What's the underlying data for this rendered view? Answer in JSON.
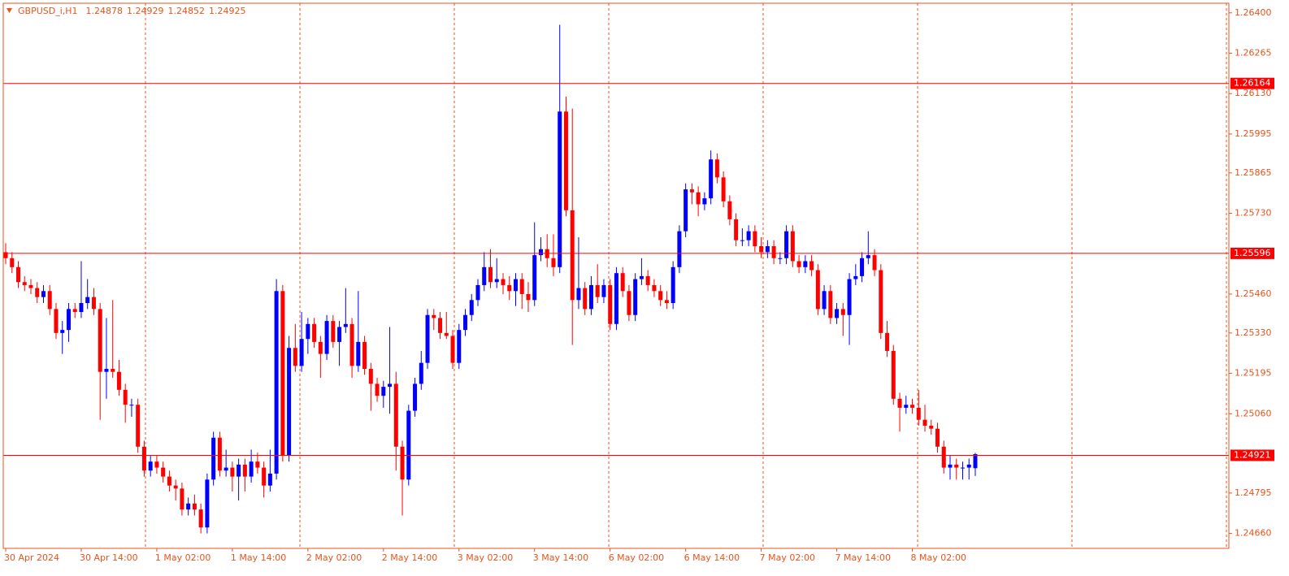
{
  "chart_data": {
    "type": "candlestick",
    "title": "GBPUSD_i,H1",
    "ylim": [
      1.2461,
      1.26432
    ],
    "yticks": [
      {
        "value": 1.264,
        "label": "1.26400"
      },
      {
        "value": 1.26265,
        "label": "1.26265"
      },
      {
        "value": 1.2613,
        "label": "1.26130"
      },
      {
        "value": 1.25995,
        "label": "1.25995"
      },
      {
        "value": 1.25865,
        "label": "1.25865"
      },
      {
        "value": 1.2573,
        "label": "1.25730"
      },
      {
        "value": 1.2546,
        "label": "1.25460"
      },
      {
        "value": 1.2533,
        "label": "1.25330"
      },
      {
        "value": 1.25195,
        "label": "1.25195"
      },
      {
        "value": 1.2506,
        "label": "1.25060"
      },
      {
        "value": 1.24795,
        "label": "1.24795"
      },
      {
        "value": 1.2466,
        "label": "1.24660"
      }
    ],
    "hlines": [
      1.26164,
      1.25596,
      1.24921
    ],
    "x_labels": [
      "30 Apr 2024",
      "30 Apr 14:00",
      "1 May 02:00",
      "1 May 14:00",
      "2 May 02:00",
      "2 May 14:00",
      "3 May 02:00",
      "3 May 14:00",
      "6 May 02:00",
      "6 May 14:00",
      "7 May 02:00",
      "7 May 14:00",
      "8 May 02:00"
    ],
    "up_color": "#0000ff",
    "down_color": "#ff0000",
    "axis_color": "#e8541c",
    "grid": true,
    "candles": [
      [
        1.256,
        1.2563,
        1.2556,
        1.2558
      ],
      [
        1.2558,
        1.256,
        1.2553,
        1.2555
      ],
      [
        1.2555,
        1.2557,
        1.2548,
        1.255
      ],
      [
        1.255,
        1.2552,
        1.2547,
        1.2549
      ],
      [
        1.2549,
        1.2551,
        1.2546,
        1.2548
      ],
      [
        1.2548,
        1.255,
        1.2543,
        1.2545
      ],
      [
        1.2545,
        1.2549,
        1.2543,
        1.2547
      ],
      [
        1.2547,
        1.2549,
        1.2539,
        1.2541
      ],
      [
        1.2541,
        1.2543,
        1.2531,
        1.2533
      ],
      [
        1.2533,
        1.2537,
        1.2526,
        1.2534
      ],
      [
        1.2534,
        1.2543,
        1.253,
        1.2541
      ],
      [
        1.2541,
        1.2543,
        1.2538,
        1.254
      ],
      [
        1.254,
        1.2557,
        1.2538,
        1.2543
      ],
      [
        1.2543,
        1.2551,
        1.2541,
        1.2545
      ],
      [
        1.2545,
        1.2548,
        1.2539,
        1.2541
      ],
      [
        1.2541,
        1.2543,
        1.2504,
        1.252
      ],
      [
        1.252,
        1.2538,
        1.2511,
        1.2521
      ],
      [
        1.2521,
        1.2544,
        1.2518,
        1.252
      ],
      [
        1.252,
        1.2524,
        1.2512,
        1.2514
      ],
      [
        1.2514,
        1.2516,
        1.2503,
        1.2509
      ],
      [
        1.2509,
        1.2511,
        1.2505,
        1.2509
      ],
      [
        1.2509,
        1.2511,
        1.2493,
        1.2495
      ],
      [
        1.2495,
        1.2497,
        1.2485,
        1.2487
      ],
      [
        1.2487,
        1.2492,
        1.2485,
        1.249
      ],
      [
        1.249,
        1.2492,
        1.2486,
        1.2488
      ],
      [
        1.2488,
        1.249,
        1.2483,
        1.2485
      ],
      [
        1.2485,
        1.2487,
        1.248,
        1.2482
      ],
      [
        1.2482,
        1.2484,
        1.2477,
        1.2481
      ],
      [
        1.2481,
        1.2483,
        1.2472,
        1.2474
      ],
      [
        1.2474,
        1.2478,
        1.2472,
        1.2476
      ],
      [
        1.2476,
        1.2479,
        1.2472,
        1.2474
      ],
      [
        1.2474,
        1.2476,
        1.2466,
        1.2468
      ],
      [
        1.2468,
        1.2486,
        1.2466,
        1.2484
      ],
      [
        1.2484,
        1.25,
        1.2482,
        1.2498
      ],
      [
        1.2498,
        1.25,
        1.2485,
        1.2487
      ],
      [
        1.2487,
        1.2494,
        1.2485,
        1.2488
      ],
      [
        1.2488,
        1.249,
        1.248,
        1.2485
      ],
      [
        1.2485,
        1.2491,
        1.2477,
        1.2489
      ],
      [
        1.2489,
        1.2491,
        1.248,
        1.2485
      ],
      [
        1.2485,
        1.2494,
        1.2483,
        1.249
      ],
      [
        1.249,
        1.2493,
        1.2486,
        1.2488
      ],
      [
        1.2488,
        1.249,
        1.2478,
        1.2482
      ],
      [
        1.2482,
        1.2494,
        1.248,
        1.2486
      ],
      [
        1.2486,
        1.2551,
        1.2484,
        1.2547
      ],
      [
        1.2547,
        1.2549,
        1.249,
        1.2492
      ],
      [
        1.2492,
        1.2532,
        1.249,
        1.2528
      ],
      [
        1.2528,
        1.2536,
        1.252,
        1.2522
      ],
      [
        1.2522,
        1.254,
        1.252,
        1.2531
      ],
      [
        1.2531,
        1.2538,
        1.2526,
        1.2536
      ],
      [
        1.2536,
        1.2538,
        1.2528,
        1.253
      ],
      [
        1.253,
        1.2532,
        1.2518,
        1.2526
      ],
      [
        1.2526,
        1.2539,
        1.2524,
        1.2537
      ],
      [
        1.2537,
        1.2539,
        1.2528,
        1.253
      ],
      [
        1.253,
        1.2537,
        1.2522,
        1.2535
      ],
      [
        1.2535,
        1.2548,
        1.2533,
        1.2536
      ],
      [
        1.2536,
        1.2538,
        1.2518,
        1.2522
      ],
      [
        1.2522,
        1.2547,
        1.252,
        1.253
      ],
      [
        1.253,
        1.2532,
        1.2519,
        1.2521
      ],
      [
        1.2521,
        1.2523,
        1.2507,
        1.2516
      ],
      [
        1.2516,
        1.2518,
        1.251,
        1.2512
      ],
      [
        1.2512,
        1.2517,
        1.2508,
        1.2515
      ],
      [
        1.2515,
        1.2535,
        1.2506,
        1.2516
      ],
      [
        1.2516,
        1.252,
        1.2487,
        1.2495
      ],
      [
        1.2495,
        1.2497,
        1.2472,
        1.2484
      ],
      [
        1.2484,
        1.2509,
        1.2482,
        1.2507
      ],
      [
        1.2507,
        1.2518,
        1.2505,
        1.2516
      ],
      [
        1.2516,
        1.2527,
        1.2514,
        1.2523
      ],
      [
        1.2523,
        1.2541,
        1.2521,
        1.2539
      ],
      [
        1.2539,
        1.2541,
        1.2534,
        1.2538
      ],
      [
        1.2538,
        1.254,
        1.2531,
        1.2533
      ],
      [
        1.2533,
        1.254,
        1.2531,
        1.2532
      ],
      [
        1.2532,
        1.2534,
        1.2521,
        1.2523
      ],
      [
        1.2523,
        1.2536,
        1.2521,
        1.2534
      ],
      [
        1.2534,
        1.2541,
        1.2532,
        1.2539
      ],
      [
        1.2539,
        1.2546,
        1.2537,
        1.2544
      ],
      [
        1.2544,
        1.2551,
        1.2542,
        1.2549
      ],
      [
        1.2549,
        1.256,
        1.2547,
        1.2555
      ],
      [
        1.2555,
        1.2561,
        1.2548,
        1.255
      ],
      [
        1.255,
        1.2558,
        1.2548,
        1.2551
      ],
      [
        1.2551,
        1.2553,
        1.2546,
        1.2549
      ],
      [
        1.2549,
        1.2552,
        1.2544,
        1.2547
      ],
      [
        1.2547,
        1.2553,
        1.2542,
        1.2551
      ],
      [
        1.2551,
        1.2553,
        1.2541,
        1.2546
      ],
      [
        1.2546,
        1.255,
        1.254,
        1.2544
      ],
      [
        1.2544,
        1.257,
        1.2542,
        1.2559
      ],
      [
        1.2559,
        1.2565,
        1.2557,
        1.2561
      ],
      [
        1.2561,
        1.2566,
        1.2555,
        1.2558
      ],
      [
        1.2558,
        1.2566,
        1.2552,
        1.2555
      ],
      [
        1.2555,
        1.2636,
        1.2553,
        1.2607
      ],
      [
        1.2607,
        1.2612,
        1.2572,
        1.2574
      ],
      [
        1.2574,
        1.2608,
        1.2529,
        1.2544
      ],
      [
        1.2544,
        1.2565,
        1.2541,
        1.2548
      ],
      [
        1.2548,
        1.255,
        1.2539,
        1.2541
      ],
      [
        1.2541,
        1.2552,
        1.2539,
        1.2549
      ],
      [
        1.2549,
        1.2556,
        1.2543,
        1.2545
      ],
      [
        1.2545,
        1.2551,
        1.2543,
        1.2549
      ],
      [
        1.2549,
        1.2551,
        1.2534,
        1.2536
      ],
      [
        1.2536,
        1.2555,
        1.2534,
        1.2553
      ],
      [
        1.2553,
        1.2555,
        1.2545,
        1.2547
      ],
      [
        1.2547,
        1.2549,
        1.2537,
        1.2539
      ],
      [
        1.2539,
        1.2553,
        1.2537,
        1.2551
      ],
      [
        1.2551,
        1.2558,
        1.2549,
        1.2552
      ],
      [
        1.2552,
        1.2554,
        1.2547,
        1.2549
      ],
      [
        1.2549,
        1.2551,
        1.2545,
        1.2547
      ],
      [
        1.2547,
        1.2549,
        1.2542,
        1.2544
      ],
      [
        1.2544,
        1.2547,
        1.2541,
        1.2543
      ],
      [
        1.2543,
        1.2557,
        1.2541,
        1.2555
      ],
      [
        1.2555,
        1.2569,
        1.2553,
        1.2567
      ],
      [
        1.2567,
        1.2583,
        1.2565,
        1.2581
      ],
      [
        1.2581,
        1.2583,
        1.2576,
        1.258
      ],
      [
        1.258,
        1.2582,
        1.2572,
        1.2576
      ],
      [
        1.2576,
        1.258,
        1.2574,
        1.2578
      ],
      [
        1.2578,
        1.2594,
        1.2576,
        1.2591
      ],
      [
        1.2591,
        1.2593,
        1.2583,
        1.2585
      ],
      [
        1.2585,
        1.2587,
        1.2575,
        1.2577
      ],
      [
        1.2577,
        1.2579,
        1.2569,
        1.2571
      ],
      [
        1.2571,
        1.2573,
        1.2562,
        1.2564
      ],
      [
        1.2564,
        1.2568,
        1.2562,
        1.2564
      ],
      [
        1.2564,
        1.2569,
        1.2562,
        1.2567
      ],
      [
        1.2567,
        1.2569,
        1.256,
        1.2562
      ],
      [
        1.2562,
        1.2565,
        1.2558,
        1.256
      ],
      [
        1.256,
        1.2564,
        1.2558,
        1.2562
      ],
      [
        1.2562,
        1.2564,
        1.2556,
        1.2558
      ],
      [
        1.2558,
        1.256,
        1.2556,
        1.2558
      ],
      [
        1.2558,
        1.2569,
        1.2556,
        1.2567
      ],
      [
        1.2567,
        1.2569,
        1.2555,
        1.2557
      ],
      [
        1.2557,
        1.2559,
        1.2553,
        1.2555
      ],
      [
        1.2555,
        1.2559,
        1.2553,
        1.2557
      ],
      [
        1.2557,
        1.2559,
        1.2552,
        1.2554
      ],
      [
        1.2554,
        1.2556,
        1.2539,
        1.2541
      ],
      [
        1.2541,
        1.2549,
        1.2539,
        1.2547
      ],
      [
        1.2547,
        1.2549,
        1.2536,
        1.2538
      ],
      [
        1.2538,
        1.2543,
        1.2536,
        1.2541
      ],
      [
        1.2541,
        1.2543,
        1.2532,
        1.2539
      ],
      [
        1.2539,
        1.2553,
        1.2529,
        1.2551
      ],
      [
        1.2551,
        1.2556,
        1.2549,
        1.2552
      ],
      [
        1.2552,
        1.256,
        1.255,
        1.2558
      ],
      [
        1.2558,
        1.2567,
        1.2556,
        1.2559
      ],
      [
        1.2559,
        1.2561,
        1.2552,
        1.2554
      ],
      [
        1.2554,
        1.2556,
        1.2531,
        1.2533
      ],
      [
        1.2533,
        1.2537,
        1.2525,
        1.2527
      ],
      [
        1.2527,
        1.2529,
        1.2509,
        1.2511
      ],
      [
        1.2511,
        1.2513,
        1.25,
        1.2508
      ],
      [
        1.2508,
        1.2512,
        1.2506,
        1.2509
      ],
      [
        1.2509,
        1.2511,
        1.2506,
        1.2508
      ],
      [
        1.2508,
        1.2514,
        1.2502,
        1.2504
      ],
      [
        1.2504,
        1.2509,
        1.25,
        1.2502
      ],
      [
        1.2502,
        1.2504,
        1.2499,
        1.2501
      ],
      [
        1.2501,
        1.2503,
        1.2493,
        1.2495
      ],
      [
        1.2495,
        1.2497,
        1.2486,
        1.2488
      ],
      [
        1.2488,
        1.2492,
        1.2484,
        1.2489
      ],
      [
        1.2489,
        1.2491,
        1.2484,
        1.2488
      ],
      [
        1.2488,
        1.249,
        1.2484,
        1.2488
      ],
      [
        1.2488,
        1.2491,
        1.2484,
        1.2489
      ],
      [
        1.24878,
        1.24929,
        1.24852,
        1.24925
      ]
    ]
  }
}
